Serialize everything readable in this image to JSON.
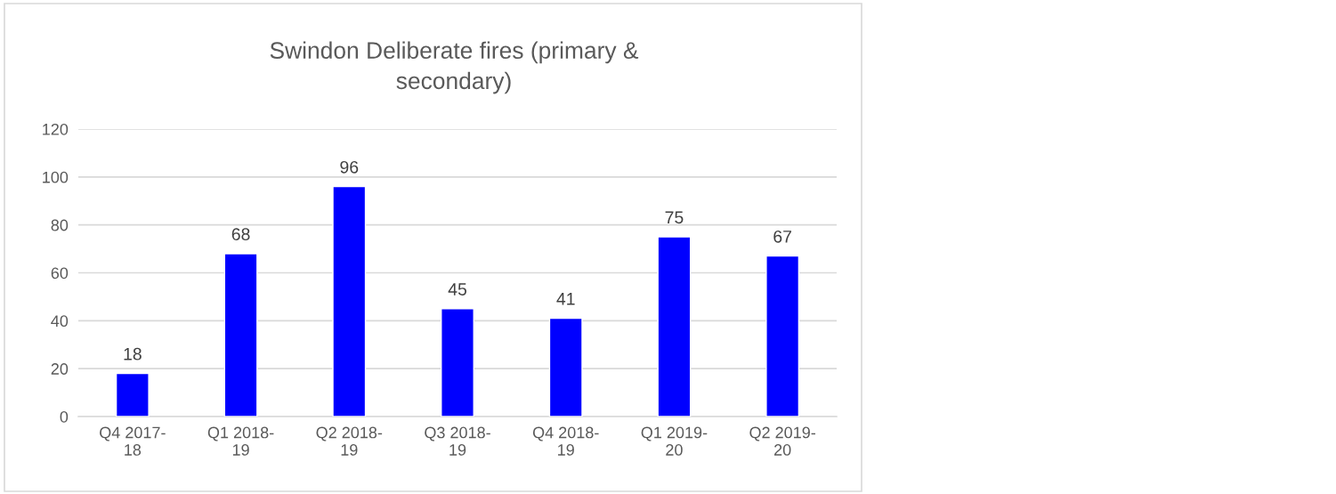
{
  "chart_data": {
    "type": "bar",
    "title": "Swindon Deliberate fires (primary &\nsecondary)",
    "categories": [
      "Q4 2017-\n18",
      "Q1 2018-\n19",
      "Q2 2018-\n19",
      "Q3 2018-\n19",
      "Q4 2018-\n19",
      "Q1 2019-\n20",
      "Q2 2019-\n20"
    ],
    "values": [
      18,
      68,
      96,
      45,
      41,
      75,
      67
    ],
    "color": "#0000ff",
    "ylim": [
      0,
      120
    ],
    "yticks": [
      0,
      20,
      40,
      60,
      80,
      100,
      120
    ],
    "grid": "y",
    "data_labels": true
  }
}
